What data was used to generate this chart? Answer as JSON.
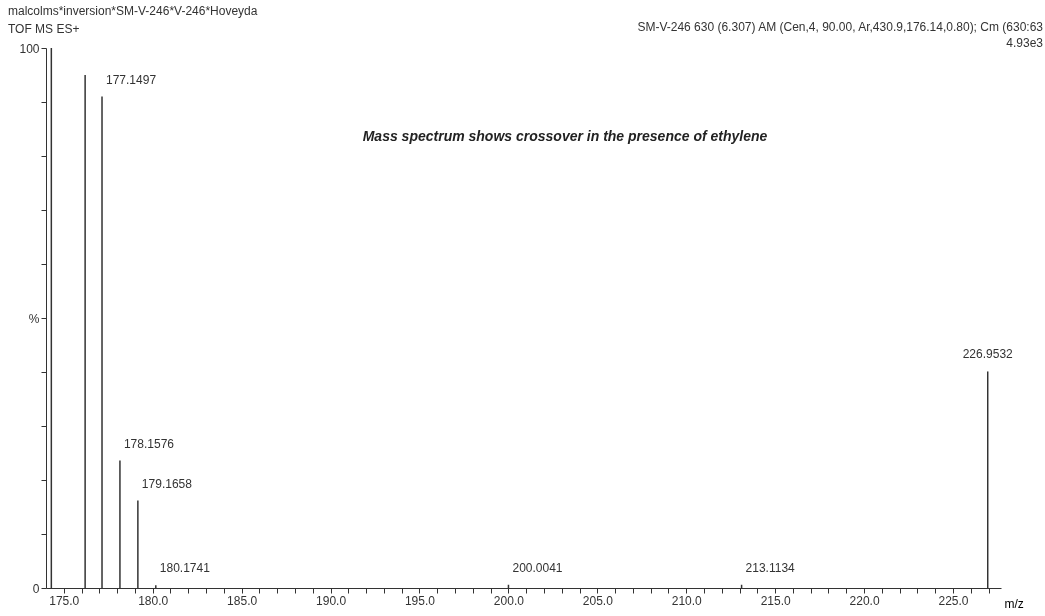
{
  "chart_data": {
    "type": "bar",
    "title": "Mass spectrum shows crossover in the presence of ethylene",
    "xlabel": "m/z",
    "x": [
      174.3,
      176.2,
      177.1497,
      178.1576,
      179.1658,
      180.1741,
      200.0041,
      213.1134,
      226.9532
    ],
    "series": [
      {
        "color": "#333333",
        "values": [
          100,
          95,
          91,
          23.6,
          16.2,
          0.5,
          0.6,
          0.6,
          40.1
        ]
      }
    ],
    "xlim": [
      174,
      227.7
    ],
    "xticks": [
      {
        "value": 175,
        "label": "175.0"
      },
      {
        "value": 176,
        "label": null
      },
      {
        "value": 177,
        "label": null
      },
      {
        "value": 178,
        "label": null
      },
      {
        "value": 179,
        "label": null
      },
      {
        "value": 180,
        "label": "180.0"
      },
      {
        "value": 181,
        "label": null
      },
      {
        "value": 182,
        "label": null
      },
      {
        "value": 183,
        "label": null
      },
      {
        "value": 184,
        "label": null
      },
      {
        "value": 185,
        "label": "185.0"
      },
      {
        "value": 186,
        "label": null
      },
      {
        "value": 187,
        "label": null
      },
      {
        "value": 188,
        "label": null
      },
      {
        "value": 189,
        "label": null
      },
      {
        "value": 190,
        "label": "190.0"
      },
      {
        "value": 191,
        "label": null
      },
      {
        "value": 192,
        "label": null
      },
      {
        "value": 193,
        "label": null
      },
      {
        "value": 194,
        "label": null
      },
      {
        "value": 195,
        "label": "195.0"
      },
      {
        "value": 196,
        "label": null
      },
      {
        "value": 197,
        "label": null
      },
      {
        "value": 198,
        "label": null
      },
      {
        "value": 199,
        "label": null
      },
      {
        "value": 200,
        "label": "200.0"
      },
      {
        "value": 201,
        "label": null
      },
      {
        "value": 202,
        "label": null
      },
      {
        "value": 203,
        "label": null
      },
      {
        "value": 204,
        "label": null
      },
      {
        "value": 205,
        "label": "205.0"
      },
      {
        "value": 206,
        "label": null
      },
      {
        "value": 207,
        "label": null
      },
      {
        "value": 208,
        "label": null
      },
      {
        "value": 209,
        "label": null
      },
      {
        "value": 210,
        "label": "210.0"
      },
      {
        "value": 211,
        "label": null
      },
      {
        "value": 212,
        "label": null
      },
      {
        "value": 213,
        "label": null
      },
      {
        "value": 214,
        "label": null
      },
      {
        "value": 215,
        "label": "215.0"
      },
      {
        "value": 216,
        "label": null
      },
      {
        "value": 217,
        "label": null
      },
      {
        "value": 218,
        "label": null
      },
      {
        "value": 219,
        "label": null
      },
      {
        "value": 220,
        "label": "220.0"
      },
      {
        "value": 221,
        "label": null
      },
      {
        "value": 222,
        "label": null
      },
      {
        "value": 223,
        "label": null
      },
      {
        "value": 224,
        "label": null
      },
      {
        "value": 225,
        "label": "225.0"
      },
      {
        "value": 226,
        "label": null
      },
      {
        "value": 227,
        "label": null
      }
    ],
    "ylim": [
      0,
      100
    ],
    "yticks": [
      0,
      {
        "value": 10,
        "label": null
      },
      {
        "value": 20,
        "label": null
      },
      {
        "value": 30,
        "label": null
      },
      {
        "value": 40,
        "label": null
      },
      {
        "value": 50,
        "label": "%"
      },
      {
        "value": 60,
        "label": null
      },
      {
        "value": 70,
        "label": null
      },
      {
        "value": 80,
        "label": null
      },
      {
        "value": 90,
        "label": null
      },
      100
    ],
    "annotations": [
      "malcolms*inversion*SM-V-246*V-246*Hoveyda",
      "TOF MS ES+",
      "SM-V-246 630 (6.307) AM (Cen,4, 90.00, Ar,430.9,176.14,0.80); Cm (630:63",
      "4.93e3",
      {
        "text": "177.1497",
        "x": 177.1497,
        "y": 91
      },
      {
        "text": "178.1576",
        "x": 178.1576,
        "y": 23.6
      },
      {
        "text": "179.1658",
        "x": 179.1658,
        "y": 16.2
      },
      {
        "text": "180.1741",
        "x": 180.1741,
        "y": 0.5
      },
      {
        "text": "200.0041",
        "x": 200.0041,
        "y": 0.6
      },
      {
        "text": "213.1134",
        "x": 213.1134,
        "y": 0.6
      },
      {
        "text": "226.9532",
        "x": 226.9532,
        "y": 40.1
      }
    ]
  }
}
